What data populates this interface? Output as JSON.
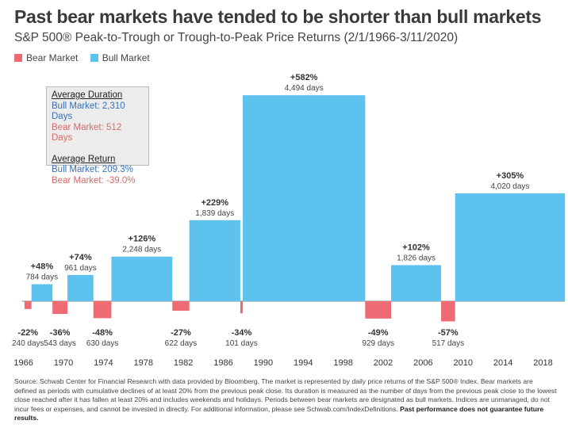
{
  "title": "Past bear markets have tended to be shorter than bull markets",
  "subtitle": "S&P 500® Peak-to-Trough or Trough-to-Peak Price Returns (2/1/1966-3/11/2020)",
  "legend": {
    "bear": "Bear Market",
    "bull": "Bull Market"
  },
  "colors": {
    "bear": "#ef6b73",
    "bull": "#5ec2ef",
    "axis": "#8a8a8a"
  },
  "averages": {
    "duration_heading": "Average Duration",
    "bull_duration": "Bull Market:  2,310 Days",
    "bear_duration": "Bear Market:  512 Days",
    "return_heading": "Average Return",
    "bull_return": "Bull Market:  209.3%",
    "bear_return": "Bear Market:  -39.0%"
  },
  "footnote": {
    "text": "Source: Schwab Center for Financial Research with data provided by Bloomberg. The market is represented by daily price returns of the S&P 500® Index. Bear markets are defined as periods with cumulative declines of at least 20% from the previous peak close. Its duration is measured as the number of days from the previous peak close to the lowest close reached after it has fallen at least 20% and includes weekends and holidays. Periods between bear markets are designated as bull markets. Indices are unmanaged, do not incur fees or expenses, and cannot be invested in directly. For additional information, please see Schwab.com/IndexDefinitions.",
    "bold": "Past performance does not guarantee future results."
  },
  "chart_data": {
    "type": "bar",
    "xlim": [
      1965,
      2020.5
    ],
    "ylim": [
      -60,
      600
    ],
    "x_ticks": [
      1966,
      1970,
      1974,
      1978,
      1982,
      1986,
      1990,
      1994,
      1998,
      2002,
      2006,
      2010,
      2014,
      2018
    ],
    "series": [
      {
        "type": "bear",
        "start": 1966.1,
        "end": 1966.8,
        "value": -22,
        "label": "-22%",
        "days": "240 days"
      },
      {
        "type": "bull",
        "start": 1966.8,
        "end": 1968.9,
        "value": 48,
        "label": "+48%",
        "days": "784 days"
      },
      {
        "type": "bear",
        "start": 1968.9,
        "end": 1970.4,
        "value": -36,
        "label": "-36%",
        "days": "543 days"
      },
      {
        "type": "bull",
        "start": 1970.4,
        "end": 1973.0,
        "value": 74,
        "label": "+74%",
        "days": "961 days"
      },
      {
        "type": "bear",
        "start": 1973.0,
        "end": 1974.8,
        "value": -48,
        "label": "-48%",
        "days": "630 days"
      },
      {
        "type": "bull",
        "start": 1974.8,
        "end": 1980.9,
        "value": 126,
        "label": "+126%",
        "days": "2,248 days"
      },
      {
        "type": "bear",
        "start": 1980.9,
        "end": 1982.6,
        "value": -27,
        "label": "-27%",
        "days": "622 days"
      },
      {
        "type": "bull",
        "start": 1982.6,
        "end": 1987.7,
        "value": 229,
        "label": "+229%",
        "days": "1,839 days"
      },
      {
        "type": "bear",
        "start": 1987.7,
        "end": 1987.95,
        "value": -34,
        "label": "-34%",
        "days": "101 days"
      },
      {
        "type": "bull",
        "start": 1987.95,
        "end": 2000.2,
        "value": 582,
        "label": "+582%",
        "days": "4,494 days"
      },
      {
        "type": "bear",
        "start": 2000.2,
        "end": 2002.8,
        "value": -49,
        "label": "-49%",
        "days": "929 days"
      },
      {
        "type": "bull",
        "start": 2002.8,
        "end": 2007.8,
        "value": 102,
        "label": "+102%",
        "days": "1,826 days"
      },
      {
        "type": "bear",
        "start": 2007.8,
        "end": 2009.2,
        "value": -57,
        "label": "-57%",
        "days": "517 days"
      },
      {
        "type": "bull",
        "start": 2009.2,
        "end": 2020.2,
        "value": 305,
        "label": "+305%",
        "days": "4,020 days"
      }
    ]
  }
}
